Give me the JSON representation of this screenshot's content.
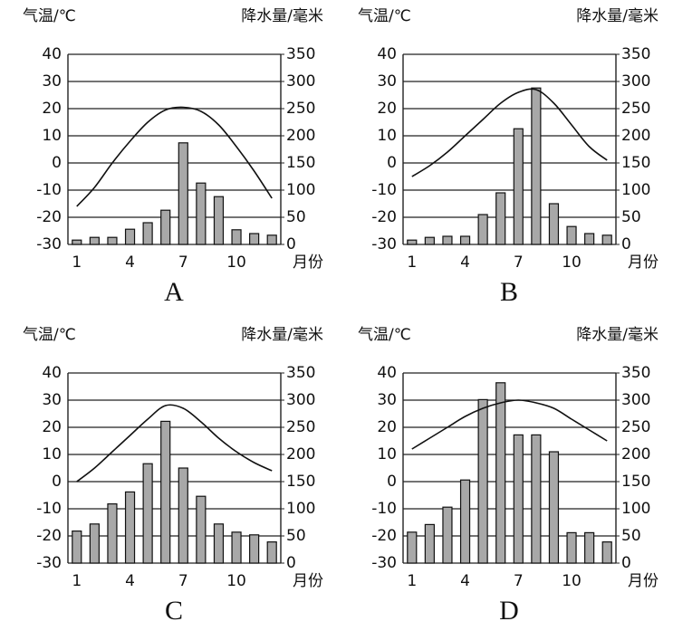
{
  "chart_data": [
    {
      "type": "combo",
      "title": "A",
      "y_label": "气温/℃",
      "y2_label": "降水量/毫米",
      "x_label": "月份",
      "categories": [
        "1",
        null,
        null,
        "4",
        null,
        null,
        "7",
        null,
        null,
        "10",
        null,
        null
      ],
      "series": [
        {
          "type": "bar",
          "axis": "y2",
          "color": "#a8a8a8",
          "values": [
            8,
            13,
            13,
            28,
            40,
            63,
            187,
            113,
            88,
            27,
            20,
            17
          ]
        },
        {
          "type": "line",
          "color": "#111111",
          "values": [
            -16,
            -9,
            0,
            8,
            15,
            19.5,
            20.5,
            19,
            14,
            6,
            -3,
            -13
          ]
        }
      ],
      "ylim": [
        -30,
        40
      ],
      "yticks": [
        -30,
        -20,
        -10,
        0,
        10,
        20,
        30,
        40
      ],
      "y2lim": [
        0,
        350
      ],
      "y2ticks": [
        0,
        50,
        100,
        150,
        200,
        250,
        300,
        350
      ],
      "grid": true
    },
    {
      "type": "combo",
      "title": "B",
      "y_label": "气温/℃",
      "y2_label": "降水量/毫米",
      "x_label": "月份",
      "categories": [
        "1",
        null,
        null,
        "4",
        null,
        null,
        "7",
        null,
        null,
        "10",
        null,
        null
      ],
      "series": [
        {
          "type": "bar",
          "axis": "y2",
          "color": "#a8a8a8",
          "values": [
            8,
            13,
            15,
            15,
            55,
            95,
            213,
            288,
            75,
            33,
            20,
            17
          ]
        },
        {
          "type": "line",
          "color": "#111111",
          "values": [
            -5,
            -1,
            4,
            10,
            16,
            22,
            26,
            27,
            22,
            14,
            6,
            1
          ]
        }
      ],
      "ylim": [
        -30,
        40
      ],
      "yticks": [
        -30,
        -20,
        -10,
        0,
        10,
        20,
        30,
        40
      ],
      "y2lim": [
        0,
        350
      ],
      "y2ticks": [
        0,
        50,
        100,
        150,
        200,
        250,
        300,
        350
      ],
      "grid": true
    },
    {
      "type": "combo",
      "title": "C",
      "y_label": "气温/℃",
      "y2_label": "降水量/毫米",
      "x_label": "月份",
      "categories": [
        "1",
        null,
        null,
        "4",
        null,
        null,
        "7",
        null,
        null,
        "10",
        null,
        null
      ],
      "series": [
        {
          "type": "bar",
          "axis": "y2",
          "color": "#a8a8a8",
          "values": [
            59,
            72,
            109,
            131,
            183,
            261,
            175,
            123,
            72,
            57,
            52,
            39
          ]
        },
        {
          "type": "line",
          "color": "#111111",
          "values": [
            0,
            5,
            11,
            17,
            23,
            28,
            27,
            22,
            16,
            11,
            7,
            4
          ]
        }
      ],
      "ylim": [
        -30,
        40
      ],
      "yticks": [
        -30,
        -20,
        -10,
        0,
        10,
        20,
        30,
        40
      ],
      "y2lim": [
        0,
        350
      ],
      "y2ticks": [
        0,
        50,
        100,
        150,
        200,
        250,
        300,
        350
      ],
      "grid": true
    },
    {
      "type": "combo",
      "title": "D",
      "y_label": "气温/℃",
      "y2_label": "降水量/毫米",
      "x_label": "月份",
      "categories": [
        "1",
        null,
        null,
        "4",
        null,
        null,
        "7",
        null,
        null,
        "10",
        null,
        null
      ],
      "series": [
        {
          "type": "bar",
          "axis": "y2",
          "color": "#a8a8a8",
          "values": [
            57,
            71,
            103,
            153,
            301,
            332,
            236,
            236,
            205,
            56,
            56,
            39
          ]
        },
        {
          "type": "line",
          "color": "#111111",
          "values": [
            12,
            16,
            20,
            24,
            27,
            29,
            30,
            29,
            27,
            23,
            19,
            15
          ]
        }
      ],
      "ylim": [
        -30,
        40
      ],
      "yticks": [
        -30,
        -20,
        -10,
        0,
        10,
        20,
        30,
        40
      ],
      "y2lim": [
        0,
        350
      ],
      "y2ticks": [
        0,
        50,
        100,
        150,
        200,
        250,
        300,
        350
      ],
      "grid": true
    }
  ]
}
